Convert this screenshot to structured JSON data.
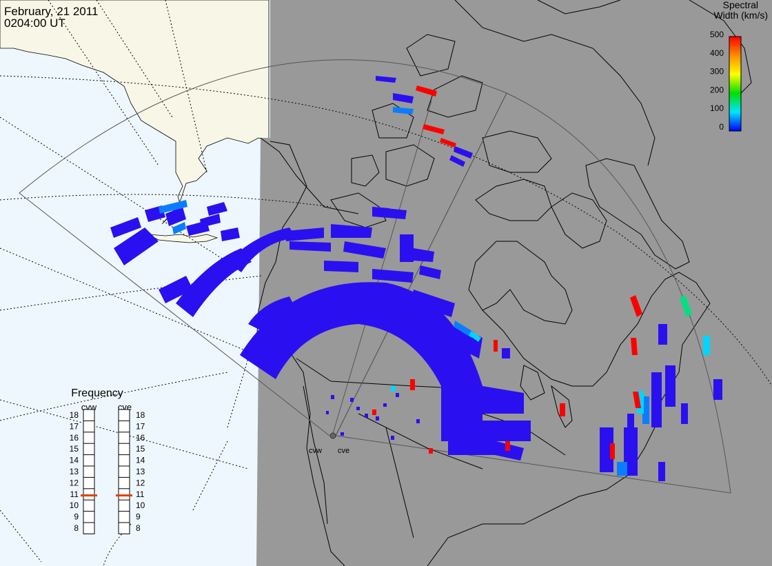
{
  "header": {
    "date": "February, 21 2011",
    "time": "0204:00 UT"
  },
  "colorbar": {
    "title_line1": "Spectral",
    "title_line2": "Width (km/s)",
    "ticks": [
      "500",
      "400",
      "300",
      "200",
      "100",
      "0"
    ],
    "colors": [
      "#ff0000",
      "#ff8c00",
      "#ffff00",
      "#00e000",
      "#00e5ff",
      "#0000ff"
    ]
  },
  "frequency_panel": {
    "title": "Frequency",
    "radars": [
      {
        "name": "cvw",
        "freq_mhz": 10.9
      },
      {
        "name": "cve",
        "freq_mhz": 10.9
      }
    ],
    "ticks": [
      "18",
      "17",
      "16",
      "15",
      "14",
      "13",
      "12",
      "11",
      "10",
      "9",
      "8"
    ],
    "marker_color": "#e04000"
  },
  "radar_sites": [
    "cvw",
    "cve"
  ],
  "colors": {
    "ocean": "#eef7fe",
    "land_day": "#f8f6e6",
    "night": "#999999",
    "scatter_main": "#2a10f0"
  }
}
